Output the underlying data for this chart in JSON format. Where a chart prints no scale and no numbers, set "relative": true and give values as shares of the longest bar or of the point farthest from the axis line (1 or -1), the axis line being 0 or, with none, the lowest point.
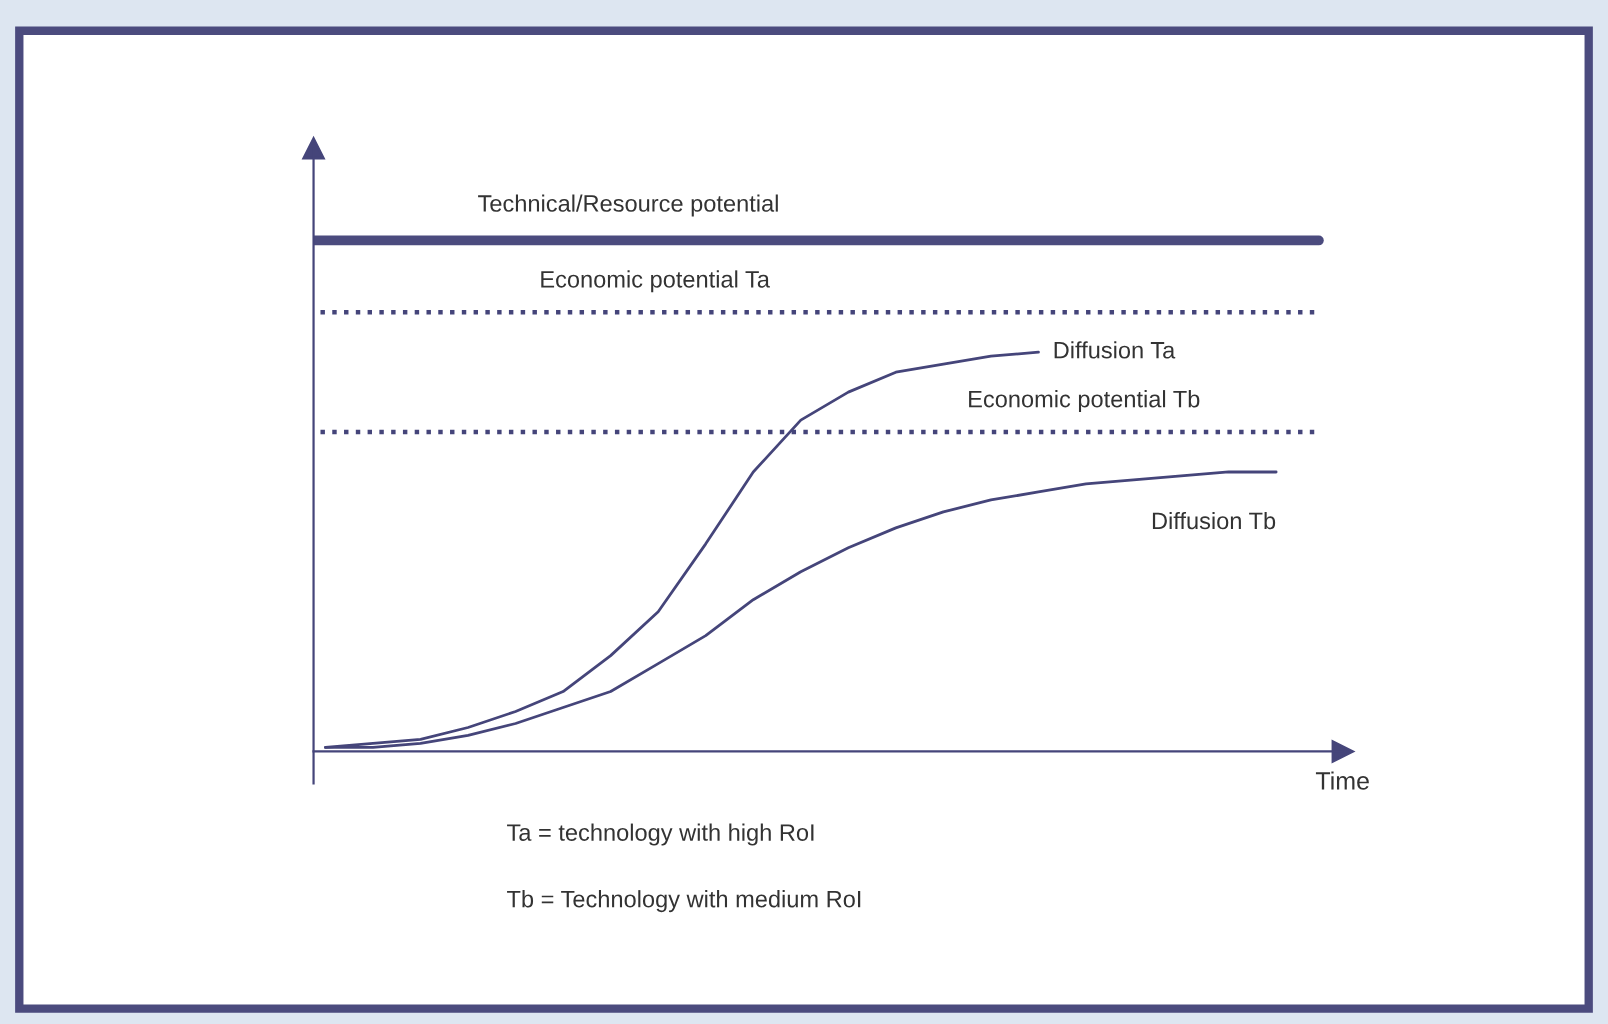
{
  "chart_data": {
    "type": "line",
    "relative": true,
    "xlabel": "Time",
    "categories": [
      null,
      null,
      null,
      null,
      null,
      null,
      null,
      null,
      null,
      null,
      null,
      null,
      null,
      null,
      null,
      null,
      null,
      null,
      null,
      null,
      null
    ],
    "series": [
      {
        "name": "Diffusion Ta",
        "color": "#45457a",
        "values": [
          0.01,
          0.02,
          0.03,
          0.06,
          0.1,
          0.15,
          0.24,
          0.35,
          0.52,
          0.7,
          0.83,
          0.9,
          0.95,
          0.97,
          0.99,
          1.0,
          null,
          null,
          null,
          null,
          null
        ]
      },
      {
        "name": "Diffusion Tb",
        "color": "#45457a",
        "values": [
          0.01,
          0.01,
          0.02,
          0.04,
          0.07,
          0.11,
          0.15,
          0.22,
          0.29,
          0.38,
          0.45,
          0.51,
          0.56,
          0.6,
          0.63,
          0.65,
          0.67,
          0.68,
          0.69,
          0.7,
          0.7
        ]
      }
    ],
    "ref_lines": [
      {
        "axis": "y",
        "value": 1.28,
        "label": "Technical/Resource potential",
        "color": "#4b4b7e",
        "line_style": "solid"
      },
      {
        "axis": "y",
        "value": 1.1,
        "label": "Economic potential Ta",
        "color": "#45457a",
        "line_style": "dotted"
      },
      {
        "axis": "y",
        "value": 0.8,
        "label": "Economic potential Tb",
        "color": "#45457a",
        "line_style": "dotted"
      }
    ],
    "annotations": [
      "Ta = technology with high RoI",
      "Tb = Technology with medium RoI"
    ],
    "legend": false,
    "line_style": "solid",
    "marker": "none"
  }
}
